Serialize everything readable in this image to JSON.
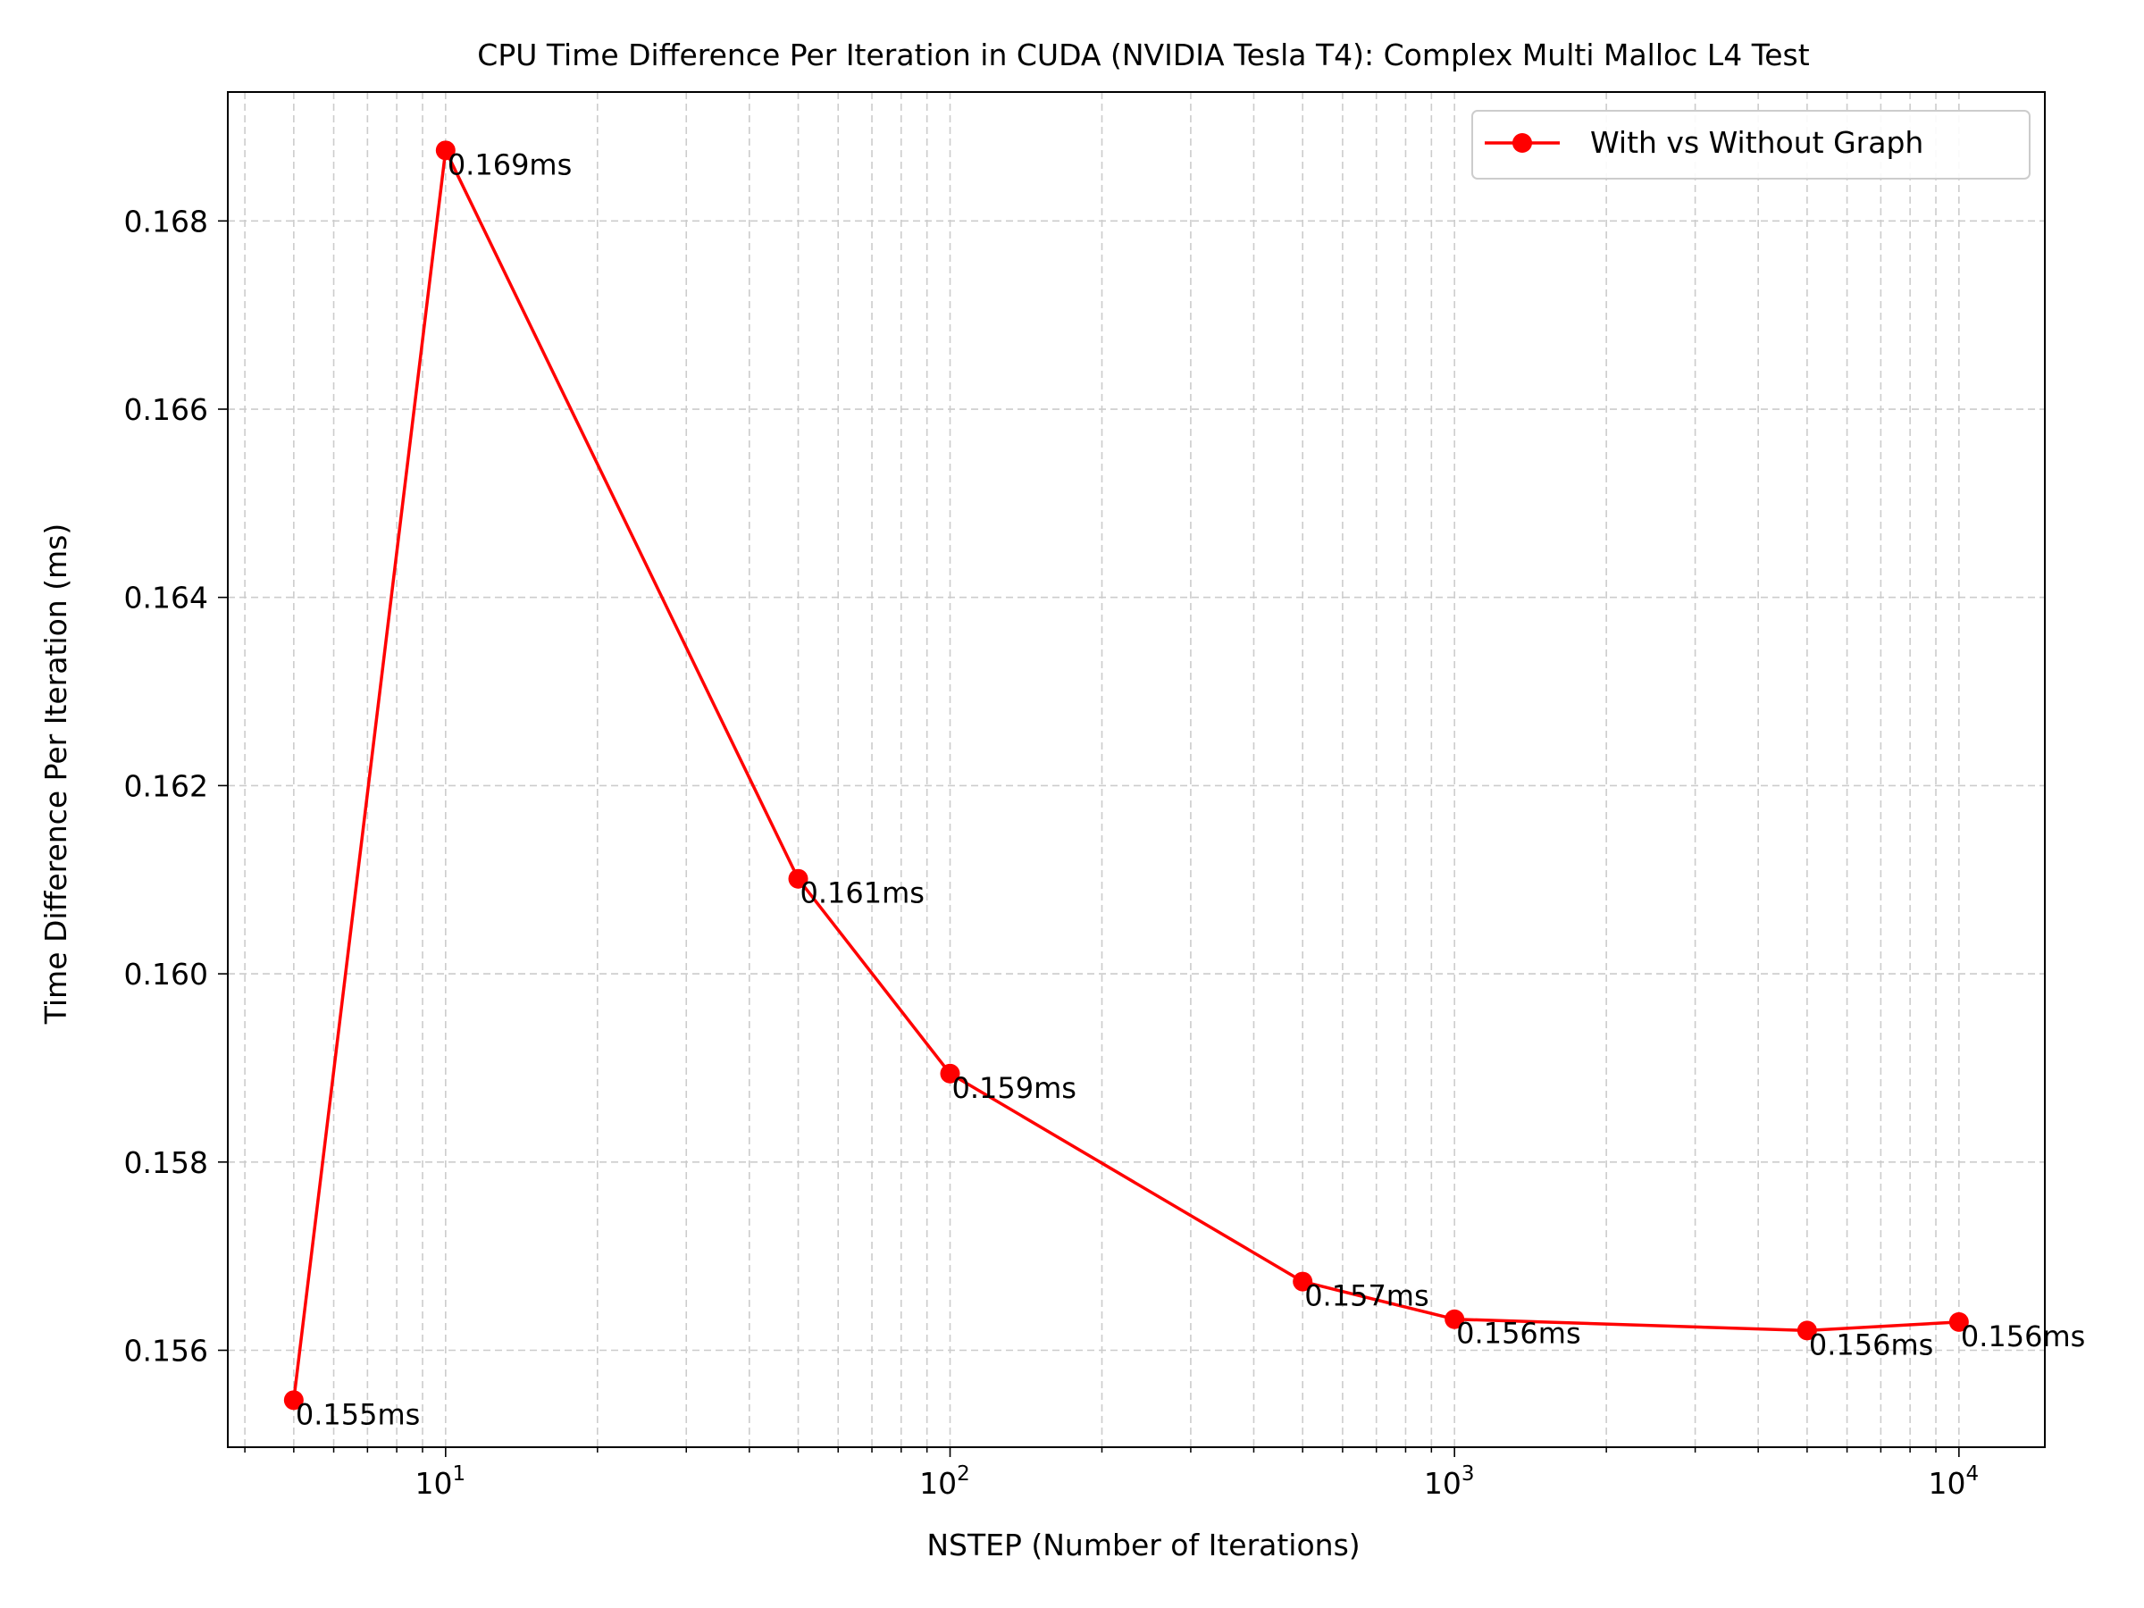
{
  "chart_data": {
    "type": "line",
    "title": "CPU Time Difference Per Iteration in CUDA (NVIDIA Tesla T4): Complex Multi Malloc L4 Test",
    "xlabel": "NSTEP (Number of Iterations)",
    "ylabel": "Time Difference Per Iteration (ms)",
    "xscale": "log",
    "xlim": [
      3.7,
      14800
    ],
    "ylim": [
      0.15497,
      0.16937
    ],
    "x_ticks": [
      {
        "value": 10,
        "base": "10",
        "exp": "1"
      },
      {
        "value": 100,
        "base": "10",
        "exp": "2"
      },
      {
        "value": 1000,
        "base": "10",
        "exp": "3"
      },
      {
        "value": 10000,
        "base": "10",
        "exp": "4"
      }
    ],
    "y_ticks": [
      {
        "value": 0.156,
        "label": "0.156"
      },
      {
        "value": 0.158,
        "label": "0.158"
      },
      {
        "value": 0.16,
        "label": "0.160"
      },
      {
        "value": 0.162,
        "label": "0.162"
      },
      {
        "value": 0.164,
        "label": "0.164"
      },
      {
        "value": 0.166,
        "label": "0.166"
      },
      {
        "value": 0.168,
        "label": "0.168"
      }
    ],
    "grid": true,
    "legend_position": "top-right",
    "series": [
      {
        "name": "With vs Without Graph",
        "color": "#ff0000",
        "marker": "circle",
        "points": [
          {
            "x": 5,
            "y": 0.15547,
            "label": "0.155ms"
          },
          {
            "x": 10,
            "y": 0.16875,
            "label": "0.169ms"
          },
          {
            "x": 50,
            "y": 0.16101,
            "label": "0.161ms"
          },
          {
            "x": 100,
            "y": 0.15894,
            "label": "0.159ms"
          },
          {
            "x": 500,
            "y": 0.15673,
            "label": "0.157ms"
          },
          {
            "x": 1000,
            "y": 0.15633,
            "label": "0.156ms"
          },
          {
            "x": 5000,
            "y": 0.15621,
            "label": "0.156ms"
          },
          {
            "x": 10000,
            "y": 0.1563,
            "label": "0.156ms"
          }
        ]
      }
    ]
  }
}
